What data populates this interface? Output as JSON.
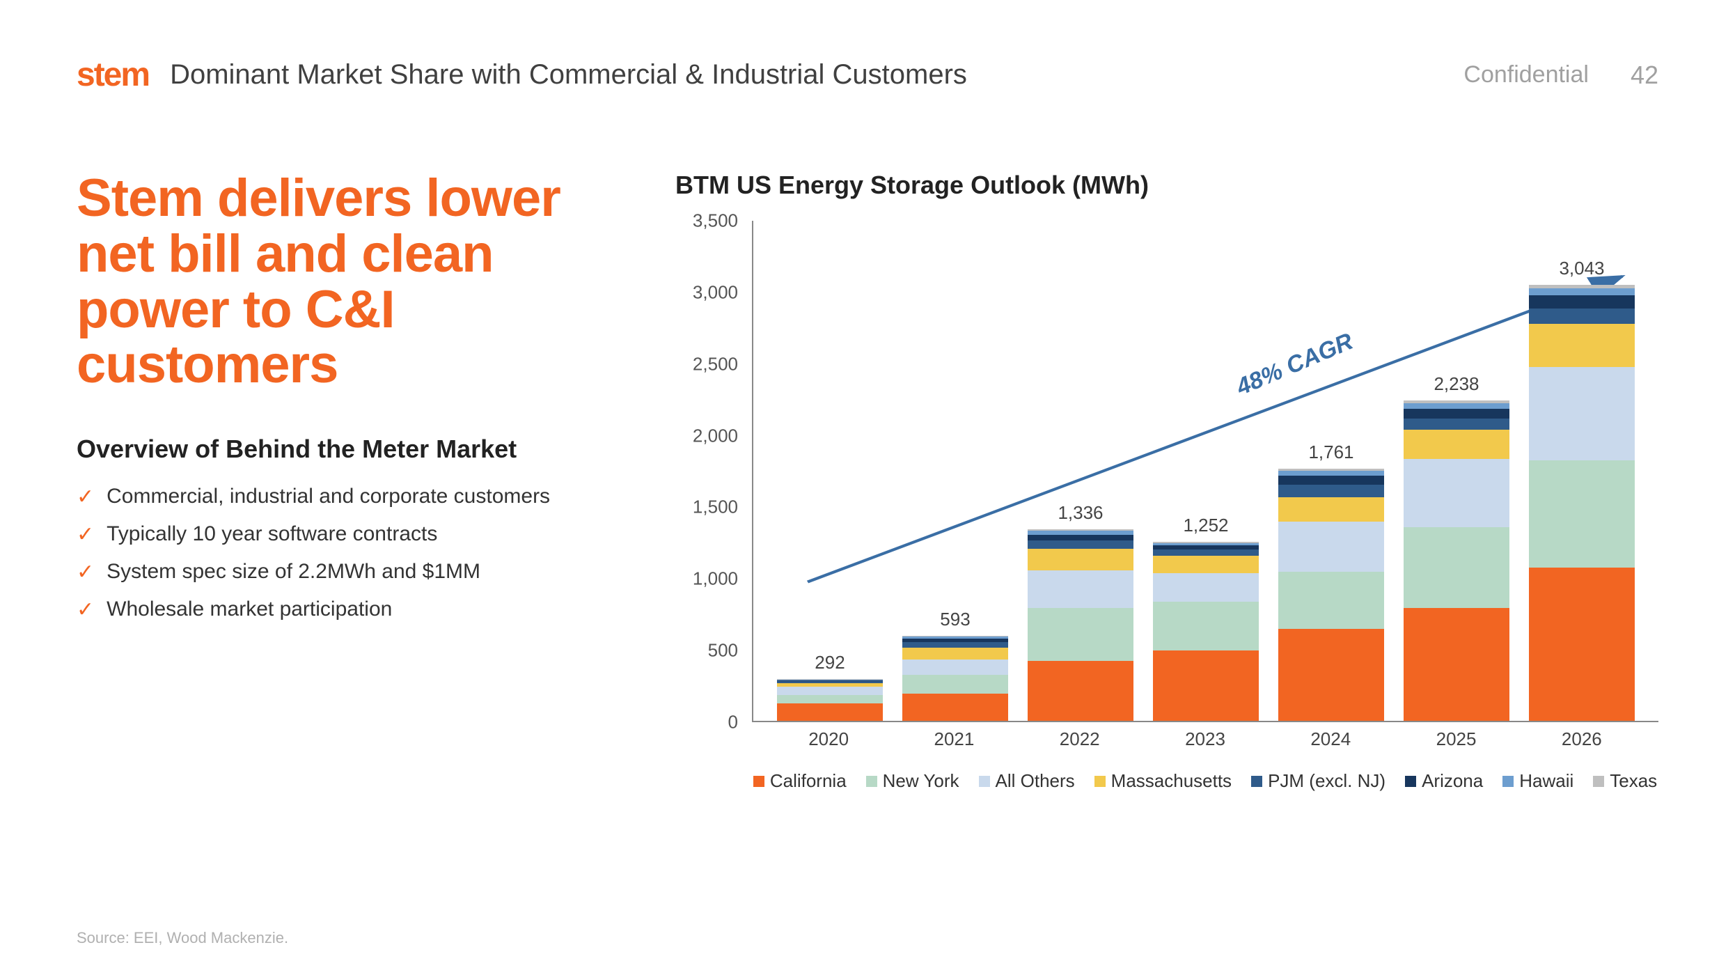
{
  "header": {
    "logo": "stem",
    "slide_title": "Dominant Market Share with Commercial & Industrial Customers",
    "confidential": "Confidential",
    "page_number": "42"
  },
  "left": {
    "headline": "Stem delivers lower net bill and clean power to C&I customers",
    "subhead": "Overview of Behind the Meter Market",
    "bullets": [
      "Commercial, industrial and corporate customers",
      "Typically 10 year software contracts",
      "System spec size of 2.2MWh and $1MM",
      "Wholesale market participation"
    ]
  },
  "chart": {
    "type": "stacked-bar",
    "title": "BTM US Energy Storage Outlook (MWh)",
    "ylim": [
      0,
      3500
    ],
    "ytick_step": 500,
    "yticks": [
      "0",
      "500",
      "1,000",
      "1,500",
      "2,000",
      "2,500",
      "3,000",
      "3,500"
    ],
    "categories": [
      "2020",
      "2021",
      "2022",
      "2023",
      "2024",
      "2025",
      "2026"
    ],
    "totals_label": [
      "292",
      "593",
      "1,336",
      "1,252",
      "1,761",
      "2,238",
      "3,043"
    ],
    "cagr_label": "48% CAGR",
    "series": [
      {
        "name": "California",
        "color": "#f26522"
      },
      {
        "name": "New York",
        "color": "#b7d9c6"
      },
      {
        "name": "All Others",
        "color": "#c9d9ec"
      },
      {
        "name": "Massachusetts",
        "color": "#f2c94c"
      },
      {
        "name": "PJM (excl. NJ)",
        "color": "#2f5b8a"
      },
      {
        "name": "Arizona",
        "color": "#17365d"
      },
      {
        "name": "Hawaii",
        "color": "#6d9ecf"
      },
      {
        "name": "Texas",
        "color": "#bfbfbf"
      }
    ],
    "data": [
      [
        120,
        60,
        60,
        25,
        10,
        7,
        7,
        3
      ],
      [
        190,
        130,
        110,
        80,
        40,
        25,
        13,
        5
      ],
      [
        420,
        370,
        260,
        150,
        60,
        40,
        26,
        10
      ],
      [
        490,
        340,
        200,
        120,
        45,
        30,
        17,
        10
      ],
      [
        640,
        400,
        350,
        170,
        90,
        60,
        36,
        15
      ],
      [
        790,
        560,
        480,
        200,
        80,
        70,
        38,
        20
      ],
      [
        1070,
        750,
        650,
        300,
        110,
        90,
        48,
        25
      ]
    ],
    "axis_color": "#888888",
    "label_fontsize": 26,
    "background_color": "#ffffff",
    "trend_arrow_color": "#3a6ea5"
  },
  "source": "Source: EEI, Wood Mackenzie.",
  "colors": {
    "brand": "#f26522",
    "text": "#333333",
    "muted": "#a0a0a0"
  }
}
